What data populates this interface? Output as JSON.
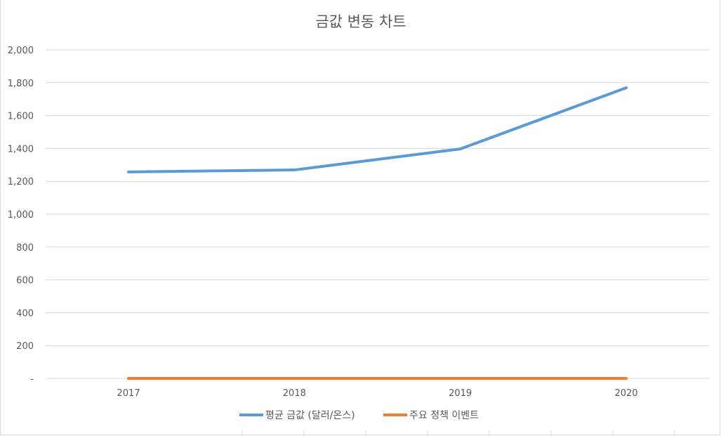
{
  "chart_data": {
    "type": "line",
    "title": "금값 변동 차트",
    "categories": [
      "2017",
      "2018",
      "2019",
      "2020"
    ],
    "ylim": [
      0,
      2000
    ],
    "yticks": [
      "-",
      "200",
      "400",
      "600",
      "800",
      "1,000",
      "1,200",
      "1,400",
      "1,600",
      "1,800",
      "2,000"
    ],
    "grid": true,
    "legend_position": "bottom",
    "series": [
      {
        "name": "평균 금값 (달러/온스)",
        "color": "#5b9bd5",
        "values": [
          1257,
          1269,
          1397,
          1769
        ]
      },
      {
        "name": "주요 정책 이벤트",
        "color": "#ed7d31",
        "values": [
          0,
          0,
          0,
          0
        ]
      }
    ]
  }
}
